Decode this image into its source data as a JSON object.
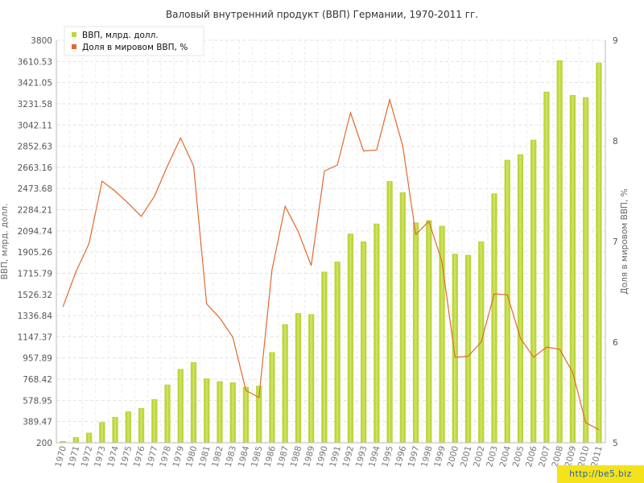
{
  "watermark": "http://be5.biz",
  "chart_data": {
    "type": "bar",
    "title": "Валовый внутренний продукт (ВВП) Германии, 1970-2011 гг.",
    "ylabel": "ВВП, млрд. долл.",
    "y2label": "Доля в мировом ВВП, %",
    "ylim": [
      200,
      3800
    ],
    "y2lim": [
      5,
      9
    ],
    "yticks": [
      "200",
      "389.47",
      "578.95",
      "768.42",
      "957.89",
      "1147.37",
      "1336.84",
      "1526.32",
      "1715.79",
      "1905.26",
      "2094.74",
      "2284.21",
      "2473.68",
      "2663.16",
      "2852.63",
      "3042.11",
      "3231.58",
      "3421.05",
      "3610.53",
      "3800"
    ],
    "y2ticks": [
      "5",
      "6",
      "7",
      "8",
      "9"
    ],
    "grid": true,
    "legend_position": "top-left",
    "categories": [
      "1970",
      "1971",
      "1972",
      "1973",
      "1974",
      "1975",
      "1976",
      "1977",
      "1978",
      "1979",
      "1980",
      "1981",
      "1982",
      "1983",
      "1984",
      "1985",
      "1986",
      "1987",
      "1988",
      "1989",
      "1990",
      "1991",
      "1992",
      "1993",
      "1994",
      "1995",
      "1996",
      "1997",
      "1998",
      "1999",
      "2000",
      "2001",
      "2002",
      "2003",
      "2004",
      "2005",
      "2006",
      "2007",
      "2008",
      "2009",
      "2010",
      "2011"
    ],
    "series": [
      {
        "name": "ВВП, млрд. долл.",
        "type": "bar",
        "axis": "left",
        "color": "#bcd63a",
        "values": [
          215,
          250,
          290,
          385,
          430,
          480,
          510,
          590,
          720,
          860,
          920,
          775,
          750,
          740,
          700,
          710,
          1010,
          1260,
          1360,
          1350,
          1730,
          1820,
          2070,
          2000,
          2160,
          2540,
          2440,
          2170,
          2190,
          2140,
          1890,
          1880,
          2000,
          2430,
          2730,
          2780,
          2910,
          3340,
          3620,
          3310,
          3290,
          3600
        ]
      },
      {
        "name": "Доля в мировом ВВП, %",
        "type": "line",
        "axis": "right",
        "color": "#e06a2c",
        "values": [
          6.35,
          6.7,
          6.98,
          7.6,
          7.5,
          7.38,
          7.25,
          7.45,
          7.75,
          8.03,
          7.75,
          6.38,
          6.24,
          6.05,
          5.52,
          5.45,
          6.72,
          7.35,
          7.1,
          6.76,
          7.7,
          7.76,
          8.28,
          7.9,
          7.91,
          8.41,
          7.95,
          7.07,
          7.2,
          6.8,
          5.85,
          5.86,
          6.0,
          6.48,
          6.47,
          6.04,
          5.85,
          5.95,
          5.93,
          5.7,
          5.2,
          5.13
        ]
      }
    ]
  }
}
